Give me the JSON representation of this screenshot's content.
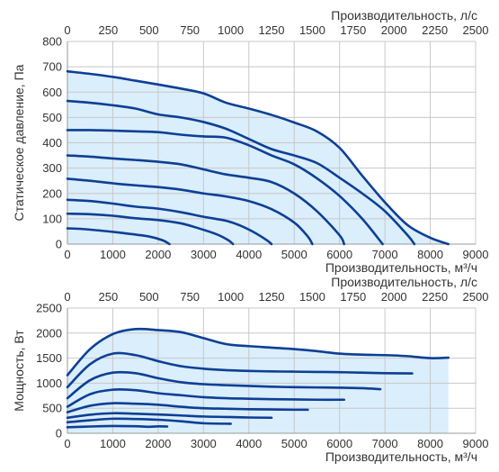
{
  "chart_data": [
    {
      "type": "line",
      "fill": "area between outer curve and axes shaded",
      "xlabel": "Производительность, м³/ч",
      "x2label": "Производительность, л/с",
      "ylabel": "Статическое давление, Па",
      "xlim": [
        0,
        9000
      ],
      "x2lim": [
        0,
        2500
      ],
      "ylim": [
        0,
        800
      ],
      "xticks": [
        "0",
        "1000",
        "2000",
        "3000",
        "4000",
        "5000",
        "6000",
        "7000",
        "8000",
        "9000"
      ],
      "x2ticks": [
        "0",
        "250",
        "500",
        "750",
        "1000",
        "1250",
        "1500",
        "1750",
        "2000",
        "2250",
        "2500"
      ],
      "yticks": [
        "0",
        "100",
        "200",
        "300",
        "400",
        "500",
        "600",
        "700",
        "800"
      ],
      "grid": true,
      "line_color": "#0d3f95",
      "fill_color": "#daeefb",
      "series": [
        {
          "x": [
            0,
            300,
            800,
            1300,
            1800,
            2100,
            2250
          ],
          "y": [
            62,
            60,
            52,
            42,
            30,
            15,
            0
          ]
        },
        {
          "x": [
            0,
            500,
            1000,
            1500,
            2000,
            2500,
            2900,
            3300,
            3550,
            3650
          ],
          "y": [
            120,
            118,
            112,
            102,
            95,
            82,
            62,
            38,
            15,
            0
          ]
        },
        {
          "x": [
            0,
            500,
            1000,
            1500,
            2000,
            2500,
            3000,
            3500,
            3800,
            4100,
            4400,
            4500
          ],
          "y": [
            175,
            170,
            160,
            148,
            140,
            126,
            108,
            92,
            74,
            48,
            15,
            0
          ]
        },
        {
          "x": [
            0,
            500,
            1000,
            1500,
            2000,
            2500,
            3000,
            3500,
            4000,
            4500,
            5000,
            5300,
            5400
          ],
          "y": [
            258,
            250,
            240,
            232,
            225,
            215,
            200,
            188,
            170,
            138,
            85,
            30,
            0
          ]
        },
        {
          "x": [
            0,
            500,
            1000,
            1500,
            2000,
            2500,
            3000,
            3500,
            4000,
            4500,
            5000,
            5500,
            6000,
            6100
          ],
          "y": [
            350,
            345,
            338,
            332,
            325,
            315,
            295,
            275,
            262,
            245,
            200,
            130,
            35,
            0
          ]
        },
        {
          "x": [
            0,
            500,
            1000,
            1500,
            2000,
            2500,
            3000,
            3500,
            4000,
            4500,
            5000,
            5500,
            6000,
            6500,
            6950
          ],
          "y": [
            450,
            450,
            448,
            445,
            442,
            432,
            425,
            420,
            390,
            350,
            315,
            260,
            190,
            100,
            0
          ]
        },
        {
          "x": [
            0,
            500,
            1000,
            1500,
            2000,
            2500,
            3000,
            3500,
            4000,
            4500,
            5000,
            5500,
            6000,
            6500,
            7000,
            7500,
            7650
          ],
          "y": [
            565,
            558,
            548,
            535,
            512,
            500,
            482,
            455,
            415,
            375,
            350,
            320,
            262,
            200,
            130,
            35,
            0
          ]
        },
        {
          "x": [
            0,
            500,
            1000,
            1500,
            2000,
            2500,
            3000,
            3500,
            4000,
            4500,
            5000,
            5500,
            6000,
            6500,
            7000,
            7500,
            8000,
            8400
          ],
          "y": [
            682,
            672,
            660,
            645,
            630,
            614,
            595,
            558,
            535,
            510,
            480,
            445,
            380,
            270,
            165,
            75,
            25,
            0
          ]
        }
      ]
    },
    {
      "type": "line",
      "fill": "area under outer curve shaded",
      "xlabel": "Производительность, м³/ч",
      "x2label": "Производительность, л/с",
      "ylabel": "Мощность, Вт",
      "xlim": [
        0,
        9000
      ],
      "x2lim": [
        0,
        2500
      ],
      "ylim": [
        0,
        2500
      ],
      "xticks": [
        "0",
        "1000",
        "2000",
        "3000",
        "4000",
        "5000",
        "6000",
        "7000",
        "8000",
        "9000"
      ],
      "x2ticks": [
        "0",
        "250",
        "500",
        "750",
        "1000",
        "1250",
        "1500",
        "1750",
        "2000",
        "2250",
        "2500"
      ],
      "yticks": [
        "0",
        "500",
        "1000",
        "1500",
        "2000",
        "2500"
      ],
      "grid": true,
      "line_color": "#0d3f95",
      "fill_color": "#daeefb",
      "series": [
        {
          "x": [
            0,
            500,
            1000,
            1500,
            1800,
            2000,
            2200
          ],
          "y": [
            120,
            135,
            145,
            140,
            130,
            138,
            135
          ]
        },
        {
          "x": [
            0,
            500,
            1000,
            1500,
            2000,
            2500,
            3000,
            3600
          ],
          "y": [
            220,
            260,
            290,
            285,
            270,
            240,
            200,
            190
          ]
        },
        {
          "x": [
            0,
            500,
            1000,
            1500,
            2000,
            2500,
            3000,
            3500,
            4000,
            4500
          ],
          "y": [
            310,
            370,
            400,
            390,
            375,
            355,
            335,
            325,
            315,
            310
          ]
        },
        {
          "x": [
            0,
            500,
            1000,
            1500,
            2000,
            2500,
            3000,
            3500,
            4000,
            4500,
            5000,
            5300
          ],
          "y": [
            420,
            550,
            600,
            590,
            570,
            530,
            500,
            490,
            480,
            475,
            470,
            470
          ]
        },
        {
          "x": [
            0,
            500,
            1000,
            1500,
            2000,
            2500,
            3000,
            3500,
            4000,
            4500,
            5000,
            5500,
            6100
          ],
          "y": [
            530,
            780,
            870,
            860,
            800,
            760,
            720,
            700,
            690,
            680,
            675,
            670,
            670
          ]
        },
        {
          "x": [
            0,
            500,
            1000,
            1500,
            2000,
            2500,
            3000,
            3500,
            4000,
            4500,
            5000,
            5500,
            6000,
            6500,
            6900
          ],
          "y": [
            700,
            1060,
            1210,
            1200,
            1100,
            1020,
            980,
            960,
            945,
            930,
            920,
            915,
            910,
            900,
            880
          ]
        },
        {
          "x": [
            0,
            500,
            1000,
            1500,
            2000,
            2500,
            3000,
            3500,
            4000,
            4500,
            5000,
            5500,
            6000,
            6500,
            7000,
            7600
          ],
          "y": [
            920,
            1380,
            1590,
            1560,
            1440,
            1340,
            1290,
            1260,
            1245,
            1235,
            1230,
            1225,
            1220,
            1210,
            1200,
            1195
          ]
        },
        {
          "x": [
            0,
            500,
            1000,
            1500,
            2000,
            2500,
            3000,
            3500,
            4000,
            4500,
            5000,
            5500,
            6000,
            6500,
            7000,
            7500,
            8000,
            8400
          ],
          "y": [
            1160,
            1680,
            1980,
            2080,
            2060,
            2020,
            1900,
            1780,
            1740,
            1710,
            1680,
            1640,
            1590,
            1570,
            1560,
            1540,
            1500,
            1510
          ]
        }
      ]
    }
  ]
}
